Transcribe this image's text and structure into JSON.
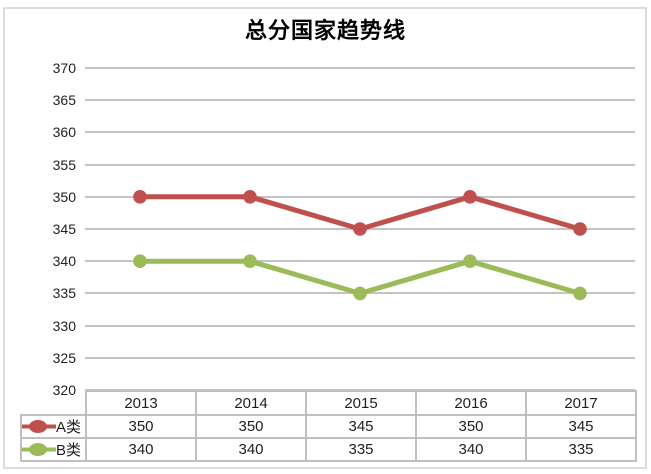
{
  "chart_data": {
    "type": "line",
    "title": "总分国家趋势线",
    "categories": [
      "2013",
      "2014",
      "2015",
      "2016",
      "2017"
    ],
    "series": [
      {
        "name": "A类",
        "values": [
          350,
          350,
          345,
          350,
          345
        ],
        "color": "#C0504D"
      },
      {
        "name": "B类",
        "values": [
          340,
          340,
          335,
          340,
          335
        ],
        "color": "#9BBB59"
      }
    ],
    "ylim": [
      320,
      370
    ],
    "ytick_step": 5,
    "yticks": [
      370,
      365,
      360,
      355,
      350,
      345,
      340,
      335,
      330,
      325,
      320
    ],
    "grid": "horizontal-only",
    "legend_position": "data-table-left",
    "has_data_table": true
  },
  "colors": {
    "series_a": "#C0504D",
    "series_b": "#9BBB59",
    "gridline": "#C4C4C6",
    "table_border": "#BFBFBF",
    "chart_border": "#DCDCDC",
    "text": "#1f1f1f",
    "background": "#FFFFFF"
  }
}
